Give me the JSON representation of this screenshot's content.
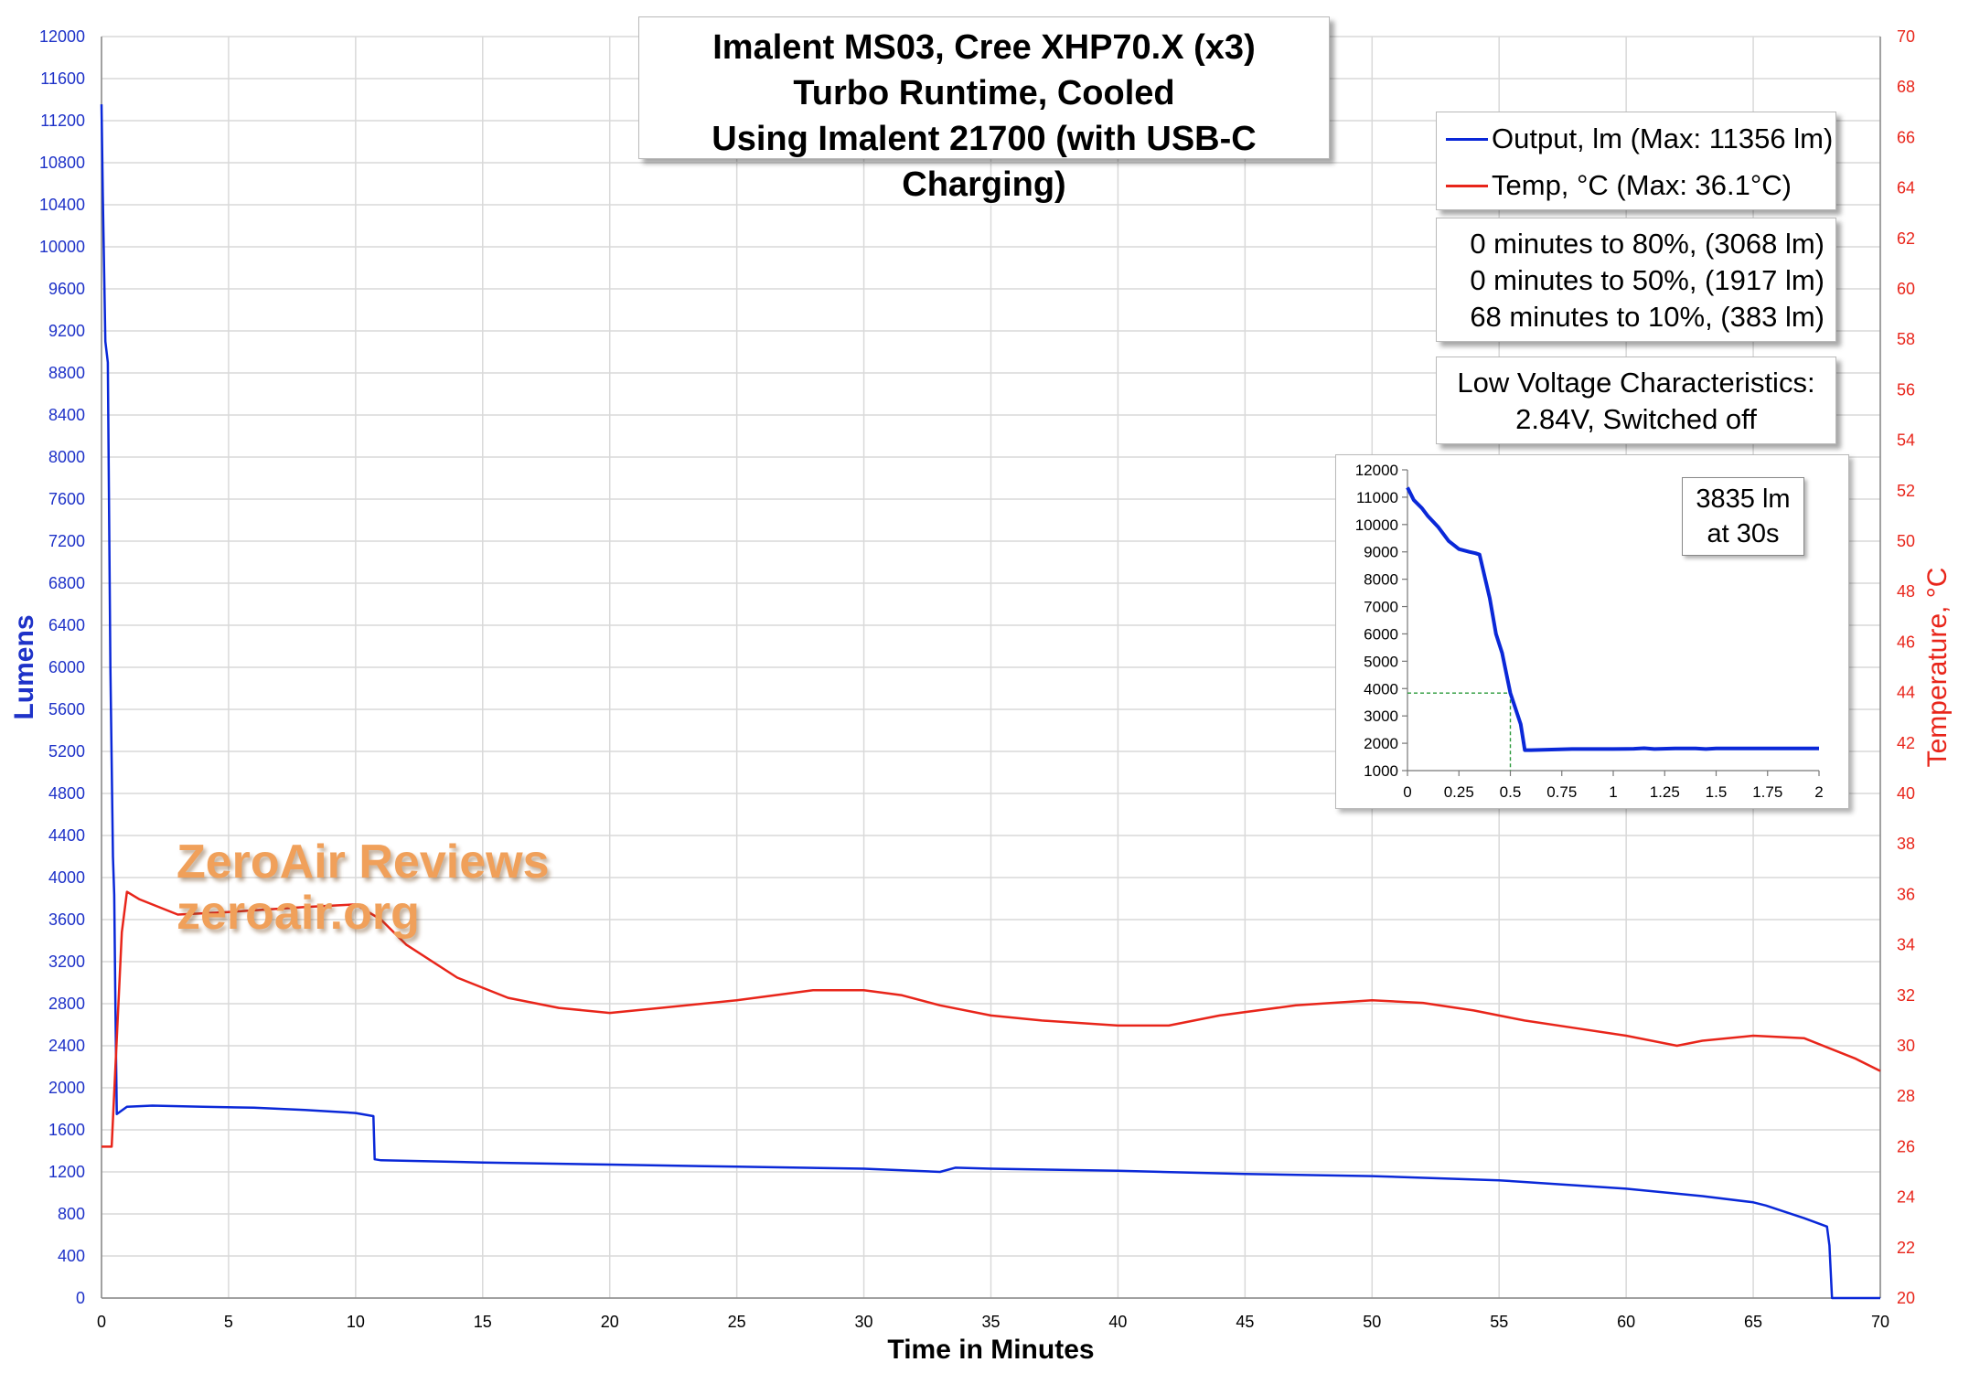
{
  "chart_data": [
    {
      "type": "line",
      "title": "Imalent MS03, Cree XHP70.X (x3)",
      "title_lines": [
        "Imalent MS03, Cree XHP70.X (x3)",
        "Turbo Runtime, Cooled",
        "Using Imalent 21700 (with USB-C Charging)"
      ],
      "xlabel": "Time in Minutes",
      "ylabel": "Lumens",
      "y2label": "Temperature, °C",
      "xlim": [
        0,
        70
      ],
      "ylim": [
        0,
        12000
      ],
      "y2lim": [
        20,
        70
      ],
      "x_ticks": [
        0,
        5,
        10,
        15,
        20,
        25,
        30,
        35,
        40,
        45,
        50,
        55,
        60,
        65,
        70
      ],
      "y_ticks": [
        0,
        400,
        800,
        1200,
        1600,
        2000,
        2400,
        2800,
        3200,
        3600,
        4000,
        4400,
        4800,
        5200,
        5600,
        6000,
        6400,
        6800,
        7200,
        7600,
        8000,
        8400,
        8800,
        9200,
        9600,
        10000,
        10400,
        10800,
        11200,
        11600,
        12000
      ],
      "y2_ticks": [
        20,
        22,
        24,
        26,
        28,
        30,
        32,
        34,
        36,
        38,
        40,
        42,
        44,
        46,
        48,
        50,
        52,
        54,
        56,
        58,
        60,
        62,
        64,
        66,
        68,
        70
      ],
      "grid": true,
      "legend_position": "top-right",
      "series": [
        {
          "name": "Output, lm (Max: 11356 lm)",
          "axis": "left",
          "color": "#0a28d8",
          "x": [
            0,
            0.05,
            0.15,
            0.25,
            0.35,
            0.45,
            0.5,
            0.55,
            0.6,
            1,
            2,
            4,
            6,
            8,
            10,
            10.7,
            10.75,
            11,
            15,
            20,
            25,
            30,
            33,
            33.6,
            35,
            40,
            45,
            50,
            55,
            60,
            63,
            65,
            65.5,
            66,
            67,
            67.9,
            68,
            68.1,
            70
          ],
          "values": [
            11356,
            10500,
            9100,
            8900,
            6000,
            4200,
            3835,
            2700,
            1750,
            1820,
            1830,
            1820,
            1810,
            1790,
            1760,
            1730,
            1320,
            1310,
            1290,
            1270,
            1250,
            1230,
            1200,
            1240,
            1230,
            1210,
            1180,
            1160,
            1120,
            1040,
            970,
            910,
            880,
            840,
            760,
            680,
            500,
            0,
            0
          ]
        },
        {
          "name": "Temp, °C (Max: 36.1°C)",
          "axis": "right",
          "color": "#e8251a",
          "x": [
            0,
            0.4,
            0.8,
            1,
            1.5,
            3,
            5,
            8,
            10,
            11,
            12,
            14,
            16,
            18,
            20,
            22,
            25,
            28,
            30,
            31.5,
            33,
            35,
            37,
            40,
            42,
            44,
            47,
            50,
            52,
            54,
            56,
            58,
            60,
            62,
            63,
            65,
            67,
            69,
            70
          ],
          "values": [
            26,
            26,
            34.5,
            36.1,
            35.8,
            35.2,
            35.3,
            35.5,
            35.6,
            35,
            34,
            32.7,
            31.9,
            31.5,
            31.3,
            31.5,
            31.8,
            32.2,
            32.2,
            32,
            31.6,
            31.2,
            31.0,
            30.8,
            30.8,
            31.2,
            31.6,
            31.8,
            31.7,
            31.4,
            31.0,
            30.7,
            30.4,
            30.0,
            30.2,
            30.4,
            30.3,
            29.5,
            29.0
          ]
        }
      ],
      "annotations": [
        "0 minutes to 80%, (3068 lm)",
        "0 minutes to 50%, (1917 lm)",
        "68 minutes to 10%, (383 lm)",
        "Low Voltage Characteristics:",
        "2.84V, Switched off"
      ]
    },
    {
      "type": "line",
      "title": "",
      "xlim": [
        0,
        2
      ],
      "ylim": [
        1000,
        12000
      ],
      "x_ticks": [
        0,
        0.25,
        0.5,
        0.75,
        1,
        1.25,
        1.5,
        1.75,
        2
      ],
      "y_ticks": [
        1000,
        2000,
        3000,
        4000,
        5000,
        6000,
        7000,
        8000,
        9000,
        10000,
        11000,
        12000
      ],
      "x_tick_labels": [
        "0",
        "0.25",
        "0.5",
        "0.75",
        "1",
        "1.25",
        "1.5",
        "1.75",
        "2"
      ],
      "grid": false,
      "series": [
        {
          "axis": "left",
          "color": "#0a28d8",
          "x": [
            0,
            0.03,
            0.07,
            0.1,
            0.15,
            0.2,
            0.25,
            0.3,
            0.33,
            0.35,
            0.4,
            0.43,
            0.46,
            0.5,
            0.55,
            0.57,
            0.6,
            0.7,
            0.8,
            0.9,
            1.0,
            1.1,
            1.15,
            1.2,
            1.3,
            1.4,
            1.45,
            1.5,
            1.6,
            1.7,
            1.8,
            1.9,
            2
          ],
          "values": [
            11356,
            10900,
            10600,
            10300,
            9900,
            9400,
            9100,
            9000,
            8950,
            8900,
            7300,
            6000,
            5300,
            3835,
            2700,
            1750,
            1750,
            1770,
            1790,
            1790,
            1790,
            1800,
            1820,
            1790,
            1810,
            1810,
            1790,
            1810,
            1810,
            1810,
            1810,
            1810,
            1810
          ]
        }
      ],
      "marker": {
        "x": 0.5,
        "y": 3835
      },
      "annotation_lines": [
        "3835 lm",
        "at 30s"
      ]
    }
  ],
  "watermark": {
    "line1": "ZeroAir Reviews",
    "line2": "zeroair.org"
  },
  "colors": {
    "lumens_axis": "#1e32c8",
    "temp_axis": "#e8251a",
    "grid": "#d9d9d9",
    "marker": "#2a9a3a"
  }
}
